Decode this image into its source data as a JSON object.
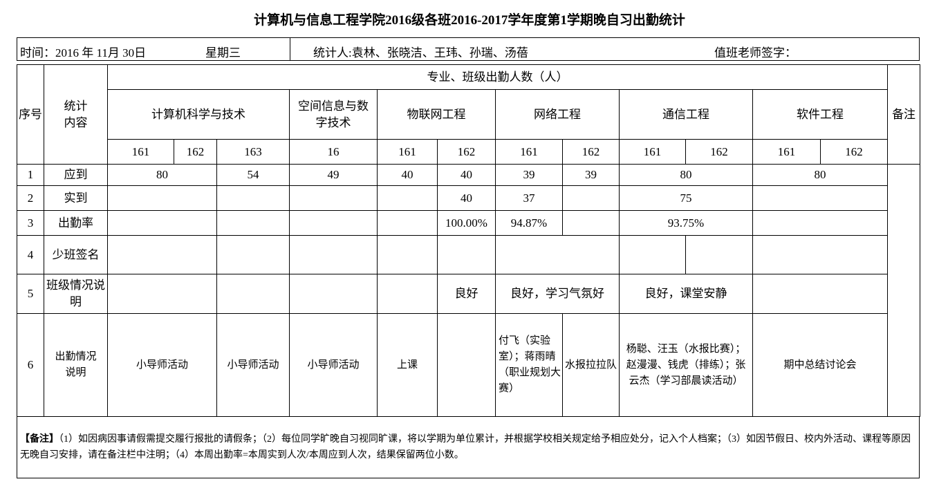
{
  "title": "计算机与信息工程学院2016级各班2016-2017学年度第1学期晚自习出勤统计",
  "info": {
    "date": "时间：2016 年 11月 30日",
    "weekday": "星期三",
    "counters": "统计人:袁林、张晓洁、王玮、孙瑞、汤蓓",
    "teacher_sign": "值班老师签字："
  },
  "header": {
    "seq": "序号",
    "content": "统计内容",
    "group": "专业、班级出勤人数（人）",
    "remark": "备注",
    "majors": [
      "计算机科学与技术",
      "空间信息与数字技术",
      "物联网工程",
      "网络工程",
      "通信工程",
      "软件工程"
    ],
    "classes": [
      "161",
      "162",
      "163",
      "16",
      "161",
      "162",
      "161",
      "162",
      "161",
      "162",
      "161",
      "162"
    ]
  },
  "rows": [
    {
      "no": "1",
      "label": "应到",
      "cells": [
        "80",
        "54",
        "49",
        "40",
        "40",
        "39",
        "39",
        "80",
        "80"
      ]
    },
    {
      "no": "2",
      "label": "实到",
      "cells": [
        "",
        "",
        "",
        "",
        "40",
        "37",
        "",
        "75",
        ""
      ]
    },
    {
      "no": "3",
      "label": "出勤率",
      "cells": [
        "",
        "",
        "",
        "",
        "100.00%",
        "94.87%",
        "",
        "93.75%",
        ""
      ]
    },
    {
      "no": "4",
      "label": "少班签名",
      "cells": [
        "",
        "",
        "",
        "",
        "",
        "",
        "",
        "",
        ""
      ]
    },
    {
      "no": "5",
      "label": "班级情况说明",
      "cells": [
        "",
        "",
        "",
        "",
        "良好",
        "良好，学习气氛好",
        "良好，课堂安静",
        ""
      ]
    },
    {
      "no": "6",
      "label": "出勤情况说明",
      "cells": [
        "小导师活动",
        "小导师活动",
        "小导师活动",
        "上课",
        "",
        "付飞（实验室）；蒋雨晴（职业规划大赛）",
        "水报拉拉队",
        "杨聪、汪玉（水报比赛）；赵漫漫、钱虎（排练）；张云杰（学习部晨读活动）",
        "期中总结讨论会"
      ]
    }
  ],
  "note": {
    "label": "【备注】",
    "text": "（1）如因病因事请假需提交履行报批的请假条；（2）每位同学旷晚自习视同旷课，将以学期为单位累计，并根据学校相关规定给予相应处分，记入个人档案；（3）如因节假日、校内外活动、课程等原因无晚自习安排，请在备注栏中注明；（4）本周出勤率=本周实到人次/本周应到人次，结果保留两位小数。"
  }
}
